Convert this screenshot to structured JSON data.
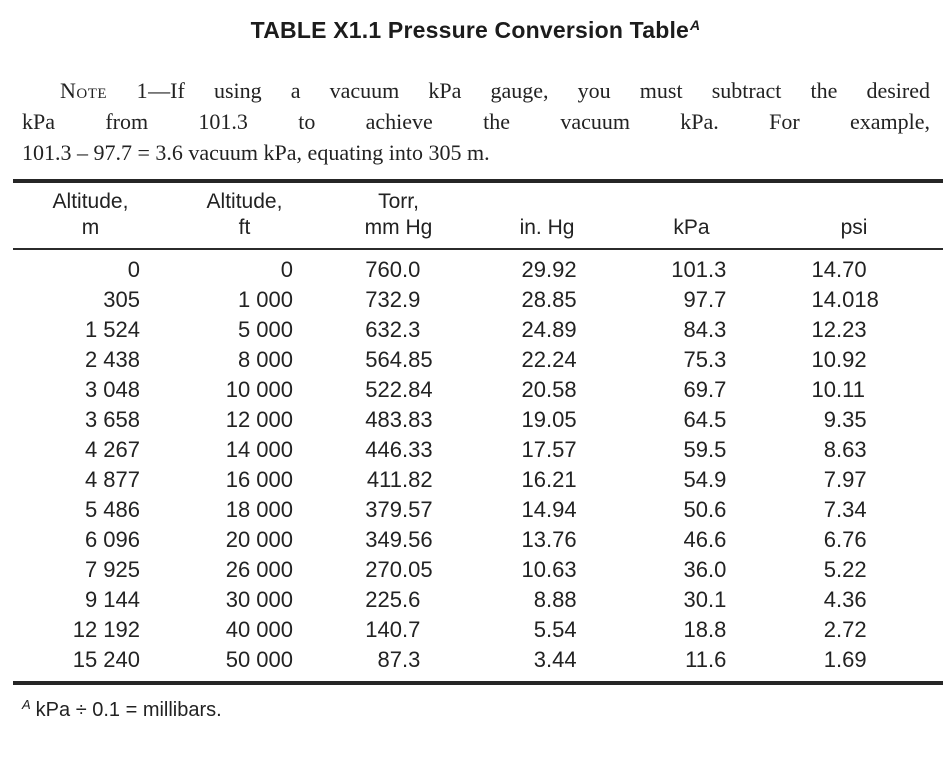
{
  "colors": {
    "ink": "#1c1c1c",
    "background": "#ffffff"
  },
  "title": {
    "text": "TABLE X1.1 Pressure Conversion Table",
    "marker": "A"
  },
  "note": {
    "label": "Note 1",
    "line1_rest": "—If using a vacuum kPa gauge, you must subtract the desired",
    "line2": "kPa from 101.3 to achieve the vacuum kPa. For example,",
    "line3": "101.3 – 97.7 = 3.6 vacuum kPa, equating into 305 m."
  },
  "table": {
    "columns": [
      {
        "key": "altitude_m",
        "line1": "Altitude,",
        "line2": "m"
      },
      {
        "key": "altitude_ft",
        "line1": "Altitude,",
        "line2": "ft"
      },
      {
        "key": "torr_mm_hg",
        "line1": "Torr,",
        "line2": "mm Hg"
      },
      {
        "key": "in_hg",
        "line1": "",
        "line2": "in. Hg"
      },
      {
        "key": "kpa",
        "line1": "",
        "line2": "kPa"
      },
      {
        "key": "psi",
        "line1": "",
        "line2": "psi"
      }
    ],
    "rows": [
      [
        "0",
        "0",
        "760.0",
        "29.92",
        "101.3",
        "14.70"
      ],
      [
        "305",
        "1 000",
        "732.9",
        "28.85",
        "97.7",
        "14.018"
      ],
      [
        "1 524",
        "5 000",
        "632.3",
        "24.89",
        "84.3",
        "12.23"
      ],
      [
        "2 438",
        "8 000",
        "564.85",
        "22.24",
        "75.3",
        "10.92"
      ],
      [
        "3 048",
        "10 000",
        "522.84",
        "20.58",
        "69.7",
        "10.11"
      ],
      [
        "3 658",
        "12 000",
        "483.83",
        "19.05",
        "64.5",
        "9.35"
      ],
      [
        "4 267",
        "14 000",
        "446.33",
        "17.57",
        "59.5",
        "8.63"
      ],
      [
        "4 877",
        "16 000",
        "411.82",
        "16.21",
        "54.9",
        "7.97"
      ],
      [
        "5 486",
        "18 000",
        "379.57",
        "14.94",
        "50.6",
        "7.34"
      ],
      [
        "6 096",
        "20 000",
        "349.56",
        "13.76",
        "46.6",
        "6.76"
      ],
      [
        "7 925",
        "26 000",
        "270.05",
        "10.63",
        "36.0",
        "5.22"
      ],
      [
        "9 144",
        "30 000",
        "225.6",
        "8.88",
        "30.1",
        "4.36"
      ],
      [
        "12 192",
        "40 000",
        "140.7",
        "5.54",
        "18.8",
        "2.72"
      ],
      [
        "15 240",
        "50 000",
        "87.3",
        "3.44",
        "11.6",
        "1.69"
      ]
    ]
  },
  "footnote": {
    "marker": "A",
    "text": "kPa ÷ 0.1 = millibars."
  }
}
